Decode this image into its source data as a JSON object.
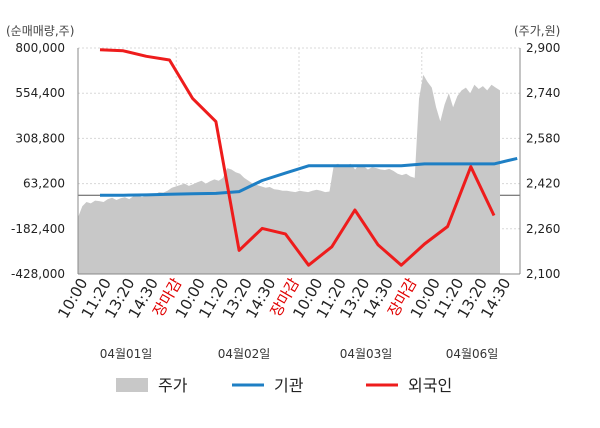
{
  "chart_data": {
    "type": "line",
    "left_axis_label": "(순매매량,주)",
    "right_axis_label": "(주가,원)",
    "left_ticks": [
      "800,000",
      "554,400",
      "308,800",
      "63,200",
      "-182,400",
      "-428,000"
    ],
    "right_ticks": [
      "2,900",
      "2,740",
      "2,580",
      "2,420",
      "2,260",
      "2,100"
    ],
    "left_ylim": [
      -428000,
      800000
    ],
    "right_ylim": [
      2100,
      2900
    ],
    "x_labels": [
      {
        "text": "10:00",
        "red": false
      },
      {
        "text": "11:20",
        "red": false
      },
      {
        "text": "13:20",
        "red": false
      },
      {
        "text": "14:30",
        "red": false
      },
      {
        "text": "장마감",
        "red": true
      },
      {
        "text": "10:00",
        "red": false
      },
      {
        "text": "11:20",
        "red": false
      },
      {
        "text": "13:20",
        "red": false
      },
      {
        "text": "14:30",
        "red": false
      },
      {
        "text": "장마감",
        "red": true
      },
      {
        "text": "10:00",
        "red": false
      },
      {
        "text": "11:20",
        "red": false
      },
      {
        "text": "13:20",
        "red": false
      },
      {
        "text": "14:30",
        "red": false
      },
      {
        "text": "장마감",
        "red": true
      },
      {
        "text": "10:00",
        "red": false
      },
      {
        "text": "11:20",
        "red": false
      },
      {
        "text": "13:20",
        "red": false
      },
      {
        "text": "14:30",
        "red": false
      }
    ],
    "dates": [
      "04월01일",
      "04월02일",
      "04월03일",
      "04월06일"
    ],
    "series": [
      {
        "name": "기관",
        "color": "#1e7fc4",
        "x": [
          1,
          2,
          3,
          4,
          5,
          6,
          7,
          8,
          9,
          10,
          11,
          12,
          13,
          14,
          15,
          16,
          17,
          18,
          19
        ],
        "values": [
          0,
          0,
          2000,
          5000,
          8000,
          10000,
          20000,
          80000,
          120000,
          160000,
          160000,
          160000,
          160000,
          160000,
          170000,
          170000,
          170000,
          170000,
          200000
        ]
      },
      {
        "name": "외국인",
        "color": "#ee1c1c",
        "x": [
          1,
          2,
          3,
          4,
          5,
          6,
          7,
          8,
          9,
          10,
          11,
          12,
          13,
          14,
          15,
          16,
          17,
          18,
          19
        ],
        "values": [
          790000,
          785000,
          755000,
          735000,
          525000,
          400000,
          -300000,
          -180000,
          -210000,
          -380000,
          -280000,
          -80000,
          -270000,
          -380000,
          -265000,
          -170000,
          155000,
          -110000,
          null
        ]
      }
    ],
    "price_series": {
      "name": "주가",
      "color": "#c8c8c8",
      "points": [
        [
          0,
          2300
        ],
        [
          2,
          2340
        ],
        [
          4,
          2355
        ],
        [
          6,
          2350
        ],
        [
          8,
          2360
        ],
        [
          10,
          2358
        ],
        [
          12,
          2355
        ],
        [
          14,
          2365
        ],
        [
          16,
          2370
        ],
        [
          18,
          2362
        ],
        [
          20,
          2368
        ],
        [
          22,
          2372
        ],
        [
          24,
          2365
        ],
        [
          26,
          2375
        ],
        [
          28,
          2380
        ],
        [
          30,
          2372
        ],
        [
          32,
          2378
        ],
        [
          34,
          2385
        ],
        [
          36,
          2380
        ],
        [
          38,
          2390
        ],
        [
          40,
          2388
        ],
        [
          42,
          2395
        ],
        [
          44,
          2405
        ],
        [
          46,
          2410
        ],
        [
          48,
          2415
        ],
        [
          50,
          2420
        ],
        [
          52,
          2412
        ],
        [
          54,
          2418
        ],
        [
          56,
          2425
        ],
        [
          58,
          2430
        ],
        [
          60,
          2420
        ],
        [
          62,
          2428
        ],
        [
          64,
          2435
        ],
        [
          66,
          2430
        ],
        [
          68,
          2440
        ],
        [
          70,
          2475
        ],
        [
          72,
          2470
        ],
        [
          74,
          2460
        ],
        [
          76,
          2455
        ],
        [
          78,
          2440
        ],
        [
          80,
          2430
        ],
        [
          82,
          2420
        ],
        [
          84,
          2415
        ],
        [
          86,
          2410
        ],
        [
          88,
          2405
        ],
        [
          90,
          2408
        ],
        [
          92,
          2400
        ],
        [
          94,
          2398
        ],
        [
          96,
          2395
        ],
        [
          98,
          2395
        ],
        [
          100,
          2392
        ],
        [
          102,
          2390
        ],
        [
          104,
          2395
        ],
        [
          106,
          2392
        ],
        [
          108,
          2390
        ],
        [
          110,
          2395
        ],
        [
          112,
          2398
        ],
        [
          114,
          2395
        ],
        [
          116,
          2390
        ],
        [
          118,
          2392
        ],
        [
          120,
          2485
        ],
        [
          122,
          2490
        ],
        [
          124,
          2480
        ],
        [
          126,
          2485
        ],
        [
          128,
          2490
        ],
        [
          130,
          2470
        ],
        [
          132,
          2488
        ],
        [
          134,
          2482
        ],
        [
          136,
          2470
        ],
        [
          138,
          2478
        ],
        [
          140,
          2475
        ],
        [
          142,
          2470
        ],
        [
          144,
          2468
        ],
        [
          146,
          2472
        ],
        [
          148,
          2465
        ],
        [
          150,
          2455
        ],
        [
          152,
          2450
        ],
        [
          154,
          2455
        ],
        [
          156,
          2445
        ],
        [
          158,
          2440
        ],
        [
          160,
          2720
        ],
        [
          162,
          2805
        ],
        [
          164,
          2780
        ],
        [
          166,
          2760
        ],
        [
          168,
          2690
        ],
        [
          170,
          2640
        ],
        [
          172,
          2700
        ],
        [
          174,
          2740
        ],
        [
          176,
          2690
        ],
        [
          178,
          2730
        ],
        [
          180,
          2750
        ],
        [
          182,
          2760
        ],
        [
          184,
          2740
        ],
        [
          186,
          2770
        ],
        [
          188,
          2755
        ],
        [
          190,
          2765
        ],
        [
          192,
          2750
        ],
        [
          194,
          2770
        ],
        [
          196,
          2760
        ],
        [
          198,
          2750
        ]
      ]
    },
    "legend": [
      {
        "name": "주가",
        "type": "area",
        "color": "#c8c8c8"
      },
      {
        "name": "기관",
        "type": "line",
        "color": "#1e7fc4"
      },
      {
        "name": "외국인",
        "type": "line",
        "color": "#ee1c1c"
      }
    ]
  }
}
